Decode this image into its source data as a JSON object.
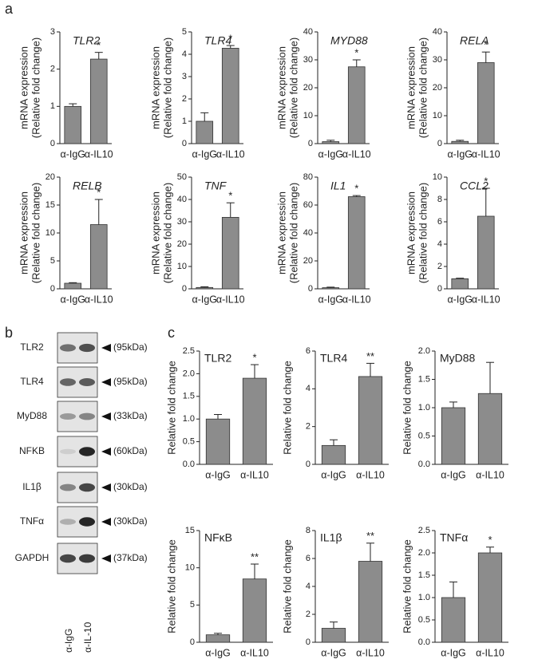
{
  "panel_labels": [
    "a",
    "b",
    "c"
  ],
  "blot": {
    "proteins": [
      "TLR2",
      "TLR4",
      "MyD88",
      "NFKB",
      "IL1β",
      "TNFα",
      "GAPDH"
    ],
    "sizes": [
      "(95kDa)",
      "(95kDa)",
      "(33kDa)",
      "(60kDa)",
      "(30kDa)",
      "(30kDa)",
      "(37kDa)"
    ],
    "lanes": [
      "α-IgG",
      "α-IL-10"
    ]
  },
  "chart_data": [
    {
      "type": "bar",
      "panel": "a",
      "title": "TLR2",
      "ylabel": [
        "mRNA expression",
        "(Relative fold change)"
      ],
      "categories": [
        "α-IgG",
        "α-IL10"
      ],
      "values": [
        1.0,
        2.27
      ],
      "errors": [
        0.07,
        0.18
      ],
      "annotation": "*",
      "ylim": [
        0,
        3
      ],
      "yticks": [
        0,
        1,
        2,
        3
      ],
      "color": "#8c8c8c"
    },
    {
      "type": "bar",
      "panel": "a",
      "title": "TLR4",
      "ylabel": [
        "mRNA expression",
        "(Relative fold change)"
      ],
      "categories": [
        "α-IgG",
        "α-IL10"
      ],
      "values": [
        1.0,
        4.27
      ],
      "errors": [
        0.38,
        0.12
      ],
      "annotation": "*",
      "ylim": [
        0,
        5
      ],
      "yticks": [
        0,
        1,
        2,
        3,
        4,
        5
      ],
      "color": "#8c8c8c"
    },
    {
      "type": "bar",
      "panel": "a",
      "title": "MYD88",
      "ylabel": [
        "mRNA expression",
        "(Relative fold change)"
      ],
      "categories": [
        "α-IgG",
        "α-IL10"
      ],
      "values": [
        0.7,
        27.5
      ],
      "errors": [
        0.5,
        2.5
      ],
      "annotation": "*",
      "ylim": [
        0,
        40
      ],
      "yticks": [
        0,
        10,
        20,
        30,
        40
      ],
      "color": "#8c8c8c"
    },
    {
      "type": "bar",
      "panel": "a",
      "title": "RELA",
      "ylabel": [
        "mRNA expression",
        "(Relative fold change)"
      ],
      "categories": [
        "α-IgG",
        "α-IL10"
      ],
      "values": [
        0.8,
        29
      ],
      "errors": [
        0.4,
        3.8
      ],
      "annotation": "*",
      "ylim": [
        0,
        40
      ],
      "yticks": [
        0,
        10,
        20,
        30,
        40
      ],
      "color": "#8c8c8c"
    },
    {
      "type": "bar",
      "panel": "a",
      "title": "RELB",
      "ylabel": [
        "mRNA expression",
        "(Relative fold change)"
      ],
      "categories": [
        "α-IgG",
        "α-IL10"
      ],
      "values": [
        1.0,
        11.5
      ],
      "errors": [
        0.1,
        4.5
      ],
      "annotation": "*",
      "ylim": [
        0,
        20
      ],
      "yticks": [
        0,
        5,
        10,
        15,
        20
      ],
      "color": "#8c8c8c"
    },
    {
      "type": "bar",
      "panel": "a",
      "title": "TNF",
      "ylabel": [
        "mRNA expression",
        "(Relative fold change)"
      ],
      "categories": [
        "α-IgG",
        "α-IL10"
      ],
      "values": [
        0.6,
        32
      ],
      "errors": [
        0.3,
        6.5
      ],
      "annotation": "*",
      "ylim": [
        0,
        50
      ],
      "yticks": [
        0,
        10,
        20,
        30,
        40,
        50
      ],
      "color": "#8c8c8c"
    },
    {
      "type": "bar",
      "panel": "a",
      "title": "IL1",
      "ylabel": [
        "mRNA expression",
        "(Relative fold change)"
      ],
      "categories": [
        "α-IgG",
        "α-IL10"
      ],
      "values": [
        0.8,
        66
      ],
      "errors": [
        0.4,
        0.8
      ],
      "annotation": "*",
      "ylim": [
        0,
        80
      ],
      "yticks": [
        0,
        20,
        40,
        60,
        80
      ],
      "color": "#8c8c8c"
    },
    {
      "type": "bar",
      "panel": "a",
      "title": "CCL2",
      "ylabel": [
        "mRNA expression",
        "(Relative fold change)"
      ],
      "categories": [
        "α-IgG",
        "α-IL10"
      ],
      "values": [
        0.9,
        6.5
      ],
      "errors": [
        0.05,
        2.5
      ],
      "annotation": "*",
      "ylim": [
        0,
        10
      ],
      "yticks": [
        0,
        2,
        4,
        6,
        8,
        10
      ],
      "color": "#8c8c8c"
    },
    {
      "type": "bar",
      "panel": "c",
      "title": "TLR2",
      "ylabel": "Relative fold change",
      "categories": [
        "α-IgG",
        "α-IL10"
      ],
      "values": [
        1.0,
        1.9
      ],
      "errors": [
        0.1,
        0.3
      ],
      "annotation": "*",
      "ylim": [
        0,
        2.5
      ],
      "yticks": [
        {
          "value": 0,
          "label": "0.0"
        },
        0.5,
        {
          "value": 1,
          "label": "1.0"
        },
        1.5,
        {
          "value": 2,
          "label": "2.0"
        },
        2.5
      ],
      "color": "#8c8c8c"
    },
    {
      "type": "bar",
      "panel": "c",
      "title": "TLR4",
      "ylabel": "Relative fold change",
      "categories": [
        "α-IgG",
        "α-IL10"
      ],
      "values": [
        1.0,
        4.65
      ],
      "errors": [
        0.3,
        0.7
      ],
      "annotation": "**",
      "ylim": [
        0,
        6
      ],
      "yticks": [
        0,
        2,
        4,
        6
      ],
      "color": "#8c8c8c"
    },
    {
      "type": "bar",
      "panel": "c",
      "title": "MyD88",
      "ylabel": "Relative fold change",
      "categories": [
        "α-IgG",
        "α-IL10"
      ],
      "values": [
        1.0,
        1.25
      ],
      "errors": [
        0.1,
        0.55
      ],
      "ylim": [
        0,
        2
      ],
      "yticks": [
        {
          "value": 0,
          "label": "0.0"
        },
        0.5,
        {
          "value": 1,
          "label": "1.0"
        },
        1.5,
        {
          "value": 2,
          "label": "2.0"
        }
      ],
      "color": "#8c8c8c"
    },
    {
      "type": "bar",
      "panel": "c",
      "title": "NFκB",
      "ylabel": "Relative fold change",
      "categories": [
        "α-IgG",
        "α-IL10"
      ],
      "values": [
        1.0,
        8.5
      ],
      "errors": [
        0.2,
        2.0
      ],
      "annotation": "**",
      "ylim": [
        0,
        15
      ],
      "yticks": [
        0,
        5,
        10,
        15
      ],
      "color": "#8c8c8c"
    },
    {
      "type": "bar",
      "panel": "c",
      "title": "IL1β",
      "ylabel": "Relative fold change",
      "categories": [
        "α-IgG",
        "α-IL10"
      ],
      "values": [
        1.0,
        5.8
      ],
      "errors": [
        0.45,
        1.3
      ],
      "annotation": "**",
      "ylim": [
        0,
        8
      ],
      "yticks": [
        0,
        2,
        4,
        6,
        8
      ],
      "color": "#8c8c8c"
    },
    {
      "type": "bar",
      "panel": "c",
      "title": "TNFα",
      "ylabel": "Relative fold change",
      "categories": [
        "α-IgG",
        "α-IL10"
      ],
      "values": [
        1.0,
        2.0
      ],
      "errors": [
        0.35,
        0.13
      ],
      "annotation": "*",
      "ylim": [
        0,
        2.5
      ],
      "yticks": [
        {
          "value": 0,
          "label": "0.0"
        },
        0.5,
        {
          "value": 1,
          "label": "1.0"
        },
        1.5,
        {
          "value": 2,
          "label": "2.0"
        },
        2.5
      ],
      "color": "#8c8c8c"
    }
  ]
}
